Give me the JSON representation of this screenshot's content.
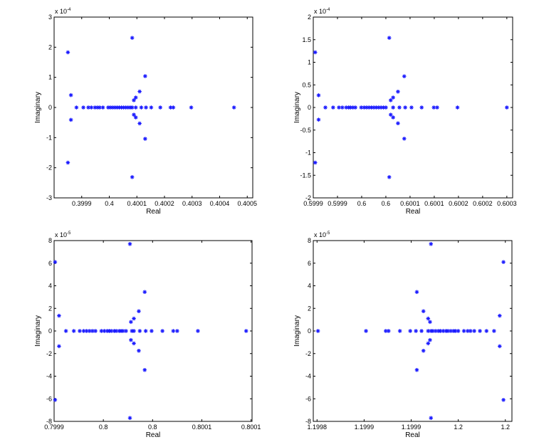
{
  "colors": {
    "marker": "#1a1aff",
    "axis": "#000000",
    "background": "#ffffff"
  },
  "chart_data": [
    {
      "type": "scatter",
      "xlabel": "Real",
      "ylabel": "Imaginary",
      "y_multiplier": "x 10",
      "y_multiplier_exp": "-4",
      "xlim": [
        0.3998,
        0.40052
      ],
      "ylim": [
        -3,
        3
      ],
      "xticks": [
        0.3999,
        0.4,
        0.4001,
        0.4002,
        0.4003,
        0.4004,
        0.4005
      ],
      "xtick_labels": [
        "0.3999",
        "0.4",
        "0.4001",
        "0.4002",
        "0.4003",
        "0.4004",
        "0.4005"
      ],
      "yticks": [
        -3,
        -2,
        -1,
        0,
        1,
        2,
        3
      ],
      "ytick_labels": [
        "-3",
        "-2",
        "-1",
        "0",
        "1",
        "2",
        "3"
      ],
      "marker": "asterisk",
      "points": [
        [
          0.39985,
          1.83
        ],
        [
          0.39985,
          -1.83
        ],
        [
          0.399861,
          0.41
        ],
        [
          0.399861,
          -0.41
        ],
        [
          0.400083,
          2.31
        ],
        [
          0.400083,
          -2.31
        ],
        [
          0.40013,
          1.04
        ],
        [
          0.40013,
          -1.04
        ],
        [
          0.40011,
          0.53
        ],
        [
          0.40011,
          -0.53
        ],
        [
          0.400096,
          0.33
        ],
        [
          0.400096,
          -0.33
        ],
        [
          0.400089,
          0.24
        ],
        [
          0.400089,
          -0.24
        ],
        [
          0.399881,
          0
        ],
        [
          0.399906,
          0
        ],
        [
          0.399924,
          0
        ],
        [
          0.399935,
          0
        ],
        [
          0.399948,
          0
        ],
        [
          0.399957,
          0
        ],
        [
          0.399965,
          0
        ],
        [
          0.399977,
          0
        ],
        [
          0.399996,
          0
        ],
        [
          0.400004,
          0
        ],
        [
          0.400012,
          0
        ],
        [
          0.40002,
          0
        ],
        [
          0.400028,
          0
        ],
        [
          0.400036,
          0
        ],
        [
          0.400044,
          0
        ],
        [
          0.400052,
          0
        ],
        [
          0.40006,
          0
        ],
        [
          0.400068,
          0
        ],
        [
          0.400076,
          0
        ],
        [
          0.400083,
          0
        ],
        [
          0.400096,
          0
        ],
        [
          0.400116,
          0
        ],
        [
          0.400133,
          0
        ],
        [
          0.400152,
          0
        ],
        [
          0.400185,
          0
        ],
        [
          0.400222,
          0
        ],
        [
          0.400232,
          0
        ],
        [
          0.400297,
          0
        ],
        [
          0.400452,
          0
        ]
      ]
    },
    {
      "type": "scatter",
      "xlabel": "Real",
      "ylabel": "Imaginary",
      "y_multiplier": "x 10",
      "y_multiplier_exp": "-4",
      "xlim": [
        0.5999,
        0.600312
      ],
      "ylim": [
        -2,
        2
      ],
      "xticks": [
        0.5999,
        0.59995,
        0.6,
        0.60005,
        0.6001,
        0.60015,
        0.6002,
        0.60025,
        0.6003
      ],
      "xtick_labels": [
        "0.5999",
        "0.5999",
        "0.6",
        "0.6",
        "0.6001",
        "0.6001",
        "0.6002",
        "0.6002",
        "0.6003"
      ],
      "yticks": [
        -2,
        -1.5,
        -1,
        -0.5,
        0,
        0.5,
        1,
        1.5,
        2
      ],
      "ytick_labels": [
        "-2",
        "-1.5",
        "-1",
        "-0.5",
        "0",
        "0.5",
        "1",
        "1.5",
        "2"
      ],
      "marker": "asterisk",
      "points": [
        [
          0.599904,
          1.22
        ],
        [
          0.599904,
          -1.22
        ],
        [
          0.599911,
          0.27
        ],
        [
          0.599911,
          -0.27
        ],
        [
          0.600057,
          1.54
        ],
        [
          0.600057,
          -1.54
        ],
        [
          0.600088,
          0.69
        ],
        [
          0.600088,
          -0.69
        ],
        [
          0.600075,
          0.35
        ],
        [
          0.600075,
          -0.35
        ],
        [
          0.600065,
          0.22
        ],
        [
          0.600065,
          -0.22
        ],
        [
          0.60006,
          0.16
        ],
        [
          0.60006,
          -0.16
        ],
        [
          0.599925,
          0
        ],
        [
          0.599941,
          0
        ],
        [
          0.599953,
          0
        ],
        [
          0.59996,
          0
        ],
        [
          0.599968,
          0
        ],
        [
          0.599973,
          0
        ],
        [
          0.599977,
          0
        ],
        [
          0.599982,
          0
        ],
        [
          0.599987,
          0
        ],
        [
          0.599999,
          0
        ],
        [
          0.600005,
          0
        ],
        [
          0.60001,
          0
        ],
        [
          0.600015,
          0
        ],
        [
          0.60002,
          0
        ],
        [
          0.600025,
          0
        ],
        [
          0.60003,
          0
        ],
        [
          0.600035,
          0
        ],
        [
          0.60004,
          0
        ],
        [
          0.600045,
          0
        ],
        [
          0.60005,
          0
        ],
        [
          0.600065,
          0
        ],
        [
          0.600078,
          0
        ],
        [
          0.60009,
          0
        ],
        [
          0.600103,
          0
        ],
        [
          0.600124,
          0
        ],
        [
          0.600149,
          0
        ],
        [
          0.600156,
          0
        ],
        [
          0.600198,
          0
        ],
        [
          0.6003,
          0
        ]
      ]
    },
    {
      "type": "scatter",
      "xlabel": "Real",
      "ylabel": "Imaginary",
      "y_multiplier": "x 10",
      "y_multiplier_exp": "-5",
      "xlim": [
        0.79995,
        0.800151
      ],
      "ylim": [
        -8,
        8
      ],
      "xticks": [
        0.79995,
        0.8,
        0.80005,
        0.8001,
        0.80015
      ],
      "xtick_labels": [
        "0.7999",
        "0.8",
        "0.8",
        "0.8001",
        "0.8001"
      ],
      "yticks": [
        -8,
        -6,
        -4,
        -2,
        0,
        2,
        4,
        6,
        8
      ],
      "ytick_labels": [
        "-8",
        "-6",
        "-4",
        "-2",
        "0",
        "2",
        "4",
        "6",
        "8"
      ],
      "marker": "asterisk",
      "points": [
        [
          0.799951,
          6.1
        ],
        [
          0.799951,
          -6.1
        ],
        [
          0.799955,
          1.35
        ],
        [
          0.799955,
          -1.35
        ],
        [
          0.800027,
          7.7
        ],
        [
          0.800027,
          -7.7
        ],
        [
          0.800042,
          3.45
        ],
        [
          0.800042,
          -3.45
        ],
        [
          0.800036,
          1.75
        ],
        [
          0.800036,
          -1.75
        ],
        [
          0.800031,
          1.1
        ],
        [
          0.800031,
          -1.1
        ],
        [
          0.800028,
          0.8
        ],
        [
          0.800028,
          -0.8
        ],
        [
          0.799962,
          0
        ],
        [
          0.79997,
          0
        ],
        [
          0.799976,
          0
        ],
        [
          0.79998,
          0
        ],
        [
          0.799983,
          0
        ],
        [
          0.799986,
          0
        ],
        [
          0.799989,
          0
        ],
        [
          0.799992,
          0
        ],
        [
          0.799998,
          0
        ],
        [
          0.800001,
          0
        ],
        [
          0.800004,
          0
        ],
        [
          0.800006,
          0
        ],
        [
          0.800008,
          0
        ],
        [
          0.800011,
          0
        ],
        [
          0.800013,
          0
        ],
        [
          0.800016,
          0
        ],
        [
          0.800018,
          0
        ],
        [
          0.80002,
          0
        ],
        [
          0.800023,
          0
        ],
        [
          0.800029,
          0
        ],
        [
          0.800031,
          0
        ],
        [
          0.800037,
          0
        ],
        [
          0.800043,
          0
        ],
        [
          0.800049,
          0
        ],
        [
          0.80006,
          0
        ],
        [
          0.800071,
          0
        ],
        [
          0.800075,
          0
        ],
        [
          0.800096,
          0
        ],
        [
          0.800145,
          0
        ]
      ]
    },
    {
      "type": "scatter",
      "xlabel": "Real",
      "ylabel": "Imaginary",
      "y_multiplier": "x 10",
      "y_multiplier_exp": "-5",
      "xlim": [
        1.199796,
        1.200007
      ],
      "ylim": [
        -8,
        8
      ],
      "xticks": [
        1.1998,
        1.19985,
        1.1999,
        1.19995,
        1.2
      ],
      "xtick_labels": [
        "1.1998",
        "1.1999",
        "1.1999",
        "1.2",
        "1.2"
      ],
      "yticks": [
        -8,
        -6,
        -4,
        -2,
        0,
        2,
        4,
        6,
        8
      ],
      "ytick_labels": [
        "-8",
        "-6",
        "-4",
        "-2",
        "0",
        "2",
        "4",
        "6",
        "8"
      ],
      "marker": "asterisk",
      "points": [
        [
          1.199921,
          7.7
        ],
        [
          1.199921,
          -7.7
        ],
        [
          1.199906,
          3.45
        ],
        [
          1.199906,
          -3.45
        ],
        [
          1.199913,
          1.75
        ],
        [
          1.199913,
          -1.75
        ],
        [
          1.199918,
          1.1
        ],
        [
          1.199918,
          -1.1
        ],
        [
          1.19992,
          0.8
        ],
        [
          1.19992,
          -0.8
        ],
        [
          1.199994,
          1.35
        ],
        [
          1.199994,
          -1.35
        ],
        [
          1.199998,
          6.1
        ],
        [
          1.199998,
          -6.1
        ],
        [
          1.199801,
          0
        ],
        [
          1.199852,
          0
        ],
        [
          1.199873,
          0
        ],
        [
          1.199876,
          0
        ],
        [
          1.199888,
          0
        ],
        [
          1.199899,
          0
        ],
        [
          1.199905,
          0
        ],
        [
          1.199911,
          0
        ],
        [
          1.199918,
          0
        ],
        [
          1.199921,
          0
        ],
        [
          1.199923,
          0
        ],
        [
          1.199926,
          0
        ],
        [
          1.199929,
          0
        ],
        [
          1.199931,
          0
        ],
        [
          1.199934,
          0
        ],
        [
          1.199937,
          0
        ],
        [
          1.199939,
          0
        ],
        [
          1.199942,
          0
        ],
        [
          1.199945,
          0
        ],
        [
          1.199947,
          0
        ],
        [
          1.19995,
          0
        ],
        [
          1.199956,
          0
        ],
        [
          1.19996,
          0
        ],
        [
          1.199963,
          0
        ],
        [
          1.199967,
          0
        ],
        [
          1.199973,
          0
        ],
        [
          1.19998,
          0
        ],
        [
          1.199988,
          0
        ]
      ]
    }
  ]
}
